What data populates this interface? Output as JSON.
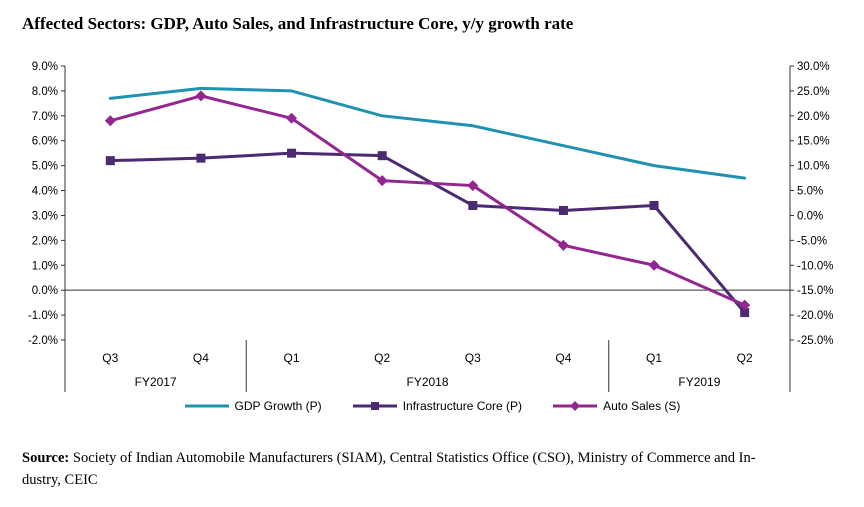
{
  "title": "Affected Sectors: GDP, Auto Sales, and Infrastructure Core, y/y growth rate",
  "chart_data": {
    "type": "line",
    "title": "Affected Sectors: GDP, Auto Sales, and Infrastructure Core, y/y growth rate",
    "categories": [
      "Q3",
      "Q4",
      "Q1",
      "Q2",
      "Q3",
      "Q4",
      "Q1",
      "Q2"
    ],
    "category_groups": [
      {
        "label": "FY2017",
        "span": 2
      },
      {
        "label": "FY2018",
        "span": 4
      },
      {
        "label": "FY2019",
        "span": 2
      }
    ],
    "left_axis": {
      "min": -2,
      "max": 9,
      "step": 1,
      "ticks": [
        "9.0%",
        "8.0%",
        "7.0%",
        "6.0%",
        "5.0%",
        "4.0%",
        "3.0%",
        "2.0%",
        "1.0%",
        "0.0%",
        "-1.0%",
        "-2.0%"
      ]
    },
    "right_axis": {
      "min": -25,
      "max": 30,
      "step": 5,
      "ticks": [
        "30.0%",
        "25.0%",
        "20.0%",
        "15.0%",
        "10.0%",
        "5.0%",
        "0.0%",
        "-5.0%",
        "-10.0%",
        "-15.0%",
        "-20.0%",
        "-25.0%"
      ]
    },
    "series": [
      {
        "id": "gdp-growth",
        "name": "GDP Growth (P)",
        "axis": "left",
        "color": "#2191b0",
        "marker": "none",
        "values": [
          7.7,
          8.1,
          8.0,
          7.0,
          6.6,
          5.8,
          5.0,
          4.5
        ]
      },
      {
        "id": "infrastructure-core",
        "name": "Infrastructure Core (P)",
        "axis": "left",
        "color": "#4b2a72",
        "marker": "square",
        "values": [
          5.2,
          5.3,
          5.5,
          5.4,
          3.4,
          3.2,
          3.4,
          -0.9
        ]
      },
      {
        "id": "auto-sales",
        "name": "Auto Sales (S)",
        "axis": "right",
        "color": "#92278f",
        "marker": "diamond",
        "values": [
          19.0,
          24.0,
          19.5,
          7.0,
          6.0,
          -6.0,
          -10.0,
          -18.0
        ]
      }
    ],
    "legend_position": "bottom",
    "grid": false
  },
  "source": {
    "label": "Source:",
    "line1": "Society of Indian Automobile Manufacturers (SIAM), Central Statistics Office (CSO), Ministry of Commerce and In-",
    "line2": "dustry, CEIC"
  }
}
